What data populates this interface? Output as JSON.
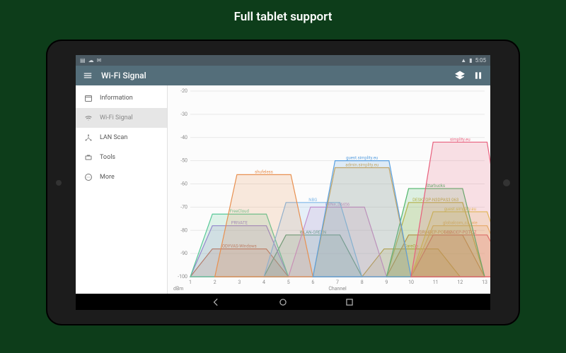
{
  "page": {
    "title": "Full tablet support"
  },
  "status_bar": {
    "time": "5:05",
    "icons": [
      "wifi",
      "battery"
    ]
  },
  "app_bar": {
    "title": "Wi-Fi Signal",
    "actions": [
      {
        "name": "layers-icon"
      },
      {
        "name": "pause-icon"
      }
    ]
  },
  "sidebar": {
    "items": [
      {
        "icon": "calendar-icon",
        "label": "Information",
        "active": false
      },
      {
        "icon": "wifi-icon",
        "label": "Wi-Fi Signal",
        "active": true
      },
      {
        "icon": "lan-icon",
        "label": "LAN Scan",
        "active": false
      },
      {
        "icon": "tools-icon",
        "label": "Tools",
        "active": false
      },
      {
        "icon": "more-icon",
        "label": "More",
        "active": false
      }
    ]
  },
  "chart": {
    "type": "wifi-channel-spectrum",
    "background_color": "#fcfcfc",
    "grid_color": "#e8e8e8",
    "text_color": "#888888",
    "label_fontsize": 7,
    "y_axis": {
      "label": "dBm",
      "min": -100,
      "max": -20,
      "ticks": [
        -20,
        -30,
        -40,
        -50,
        -60,
        -70,
        -80,
        -90,
        -100
      ]
    },
    "x_axis": {
      "label": "Channel",
      "min": 1,
      "max": 13,
      "ticks": [
        1,
        2,
        3,
        4,
        5,
        6,
        7,
        8,
        9,
        10,
        11,
        12,
        13
      ]
    },
    "networks": [
      {
        "ssid": "simplity.eu",
        "channel": 12,
        "signal": -42,
        "color": "#e85f7c",
        "width": 4
      },
      {
        "ssid": "guest.simplity.eu",
        "channel": 8,
        "signal": -50,
        "color": "#5aa0e0",
        "width": 4
      },
      {
        "ssid": "admin.simplity.eu",
        "channel": 8,
        "signal": -53,
        "color": "#d8a74f",
        "width": 4
      },
      {
        "ssid": "shufeless",
        "channel": 4,
        "signal": -56,
        "color": "#e89050",
        "width": 4
      },
      {
        "ssid": "Starbucks",
        "channel": 11,
        "signal": -62,
        "color": "#4fb56a",
        "width": 4
      },
      {
        "ssid": "DESKTOP-N3DPAS3 063",
        "channel": 11,
        "signal": -68,
        "color": "#c9b040",
        "width": 4
      },
      {
        "ssid": "NBG",
        "channel": 6,
        "signal": -68,
        "color": "#7fb8e8",
        "width": 4
      },
      {
        "ssid": "PBNe_04456",
        "channel": 7,
        "signal": -70,
        "color": "#d088c8",
        "width": 4
      },
      {
        "ssid": "guest.simplity.eu",
        "channel": 12,
        "signal": -72,
        "color": "#e0c850",
        "width": 4
      },
      {
        "ssid": "FreeCloud",
        "channel": 3,
        "signal": -73,
        "color": "#58c898",
        "width": 4
      },
      {
        "ssid": "PRIVATE",
        "channel": 3,
        "signal": -78,
        "color": "#a078d8",
        "width": 4
      },
      {
        "ssid": "globalcom_cz_wie",
        "channel": 12,
        "signal": -78,
        "color": "#e8b86a",
        "width": 4
      },
      {
        "ssid": "WLAN-GREEN",
        "channel": 6,
        "signal": -82,
        "color": "#509868",
        "width": 4
      },
      {
        "ssid": "GRINDEP-POT-CZ",
        "channel": 11,
        "signal": -82,
        "color": "#c88040",
        "width": 4
      },
      {
        "ssid": "GRINDEP-POT-CZ",
        "channel": 12,
        "signal": -82,
        "color": "#d85070",
        "width": 4
      },
      {
        "ssid": "ODYVAS-Windows",
        "channel": 3,
        "signal": -88,
        "color": "#d06848",
        "width": 4
      },
      {
        "ssid": "CareOp",
        "channel": 10,
        "signal": -88,
        "color": "#c0a030",
        "width": 4
      }
    ]
  },
  "nav_bar": {
    "buttons": [
      "back",
      "home",
      "recent"
    ]
  }
}
